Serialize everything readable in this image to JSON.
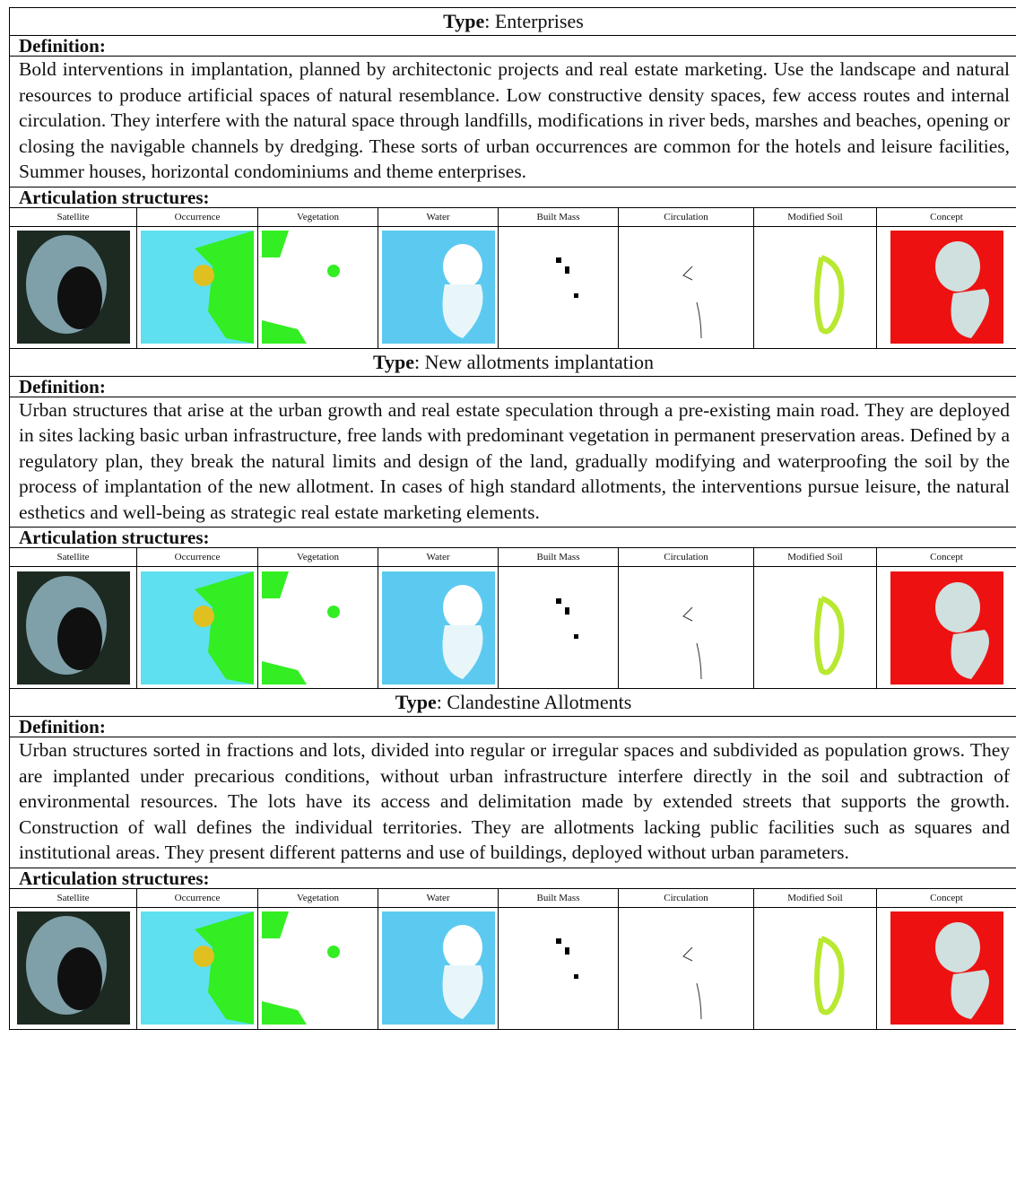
{
  "columns": [
    "Satellite",
    "Occurrence",
    "Vegetation",
    "Water",
    "Built Mass",
    "Circulation",
    "Modified Soil",
    "Concept"
  ],
  "type_label": "Type",
  "definition_heading": "Definition:",
  "articulation_heading": "Articulation structures:",
  "sections": [
    {
      "type_name": ": Enterprises",
      "definition": "Bold interventions in implantation, planned by architectonic projects and real estate marketing. Use the landscape and natural resources to produce artificial spaces of natural resemblance. Low constructive density spaces, few access routes and internal circulation. They interfere with the natural space through landfills, modifications in river beds, marshes and beaches, opening or closing the navigable channels by dredging. These sorts of urban occurrences are common for the hotels and leisure facilities, Summer houses, horizontal condominiums and theme enterprises."
    },
    {
      "type_name": ": New allotments implantation",
      "definition": "Urban structures that arise at the urban growth and real estate speculation through a pre-existing main road. They are deployed in sites lacking basic urban infrastructure, free lands with predominant vegetation in permanent preservation areas. Defined by a regulatory plan, they break the natural limits and design of the land, gradually modifying and waterproofing the soil by the process of implantation of the new allotment. In cases of high standard allotments, the interventions pursue leisure, the natural esthetics and well-being as strategic real estate marketing elements."
    },
    {
      "type_name": ":  Clandestine Allotments",
      "definition": "Urban structures sorted in fractions and lots, divided into regular or irregular spaces and subdivided as population grows. They are implanted under precarious conditions, without urban infrastructure interfere directly in the soil and subtraction of environmental resources. The lots have its access and delimitation made by extended streets that supports the growth. Construction of wall defines the individual territories. They are allotments lacking public facilities such as squares and institutional areas. They present different patterns and use of buildings, deployed without urban parameters."
    }
  ]
}
